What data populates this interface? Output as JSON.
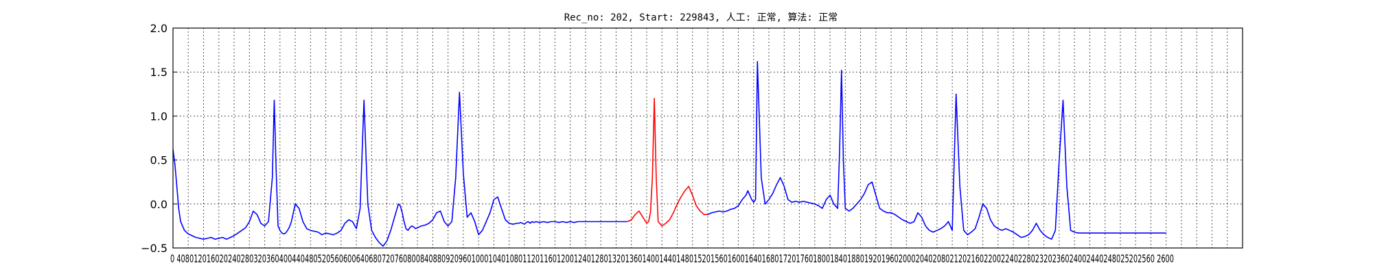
{
  "chart_data": {
    "type": "line",
    "title": "Rec_no: 202, Start: 229843, 人工: 正常, 算法: 正常",
    "xlabel": "",
    "ylabel": "",
    "xlim": [
      0,
      2800
    ],
    "ylim": [
      -0.5,
      2.0
    ],
    "grid": true,
    "legend": "none",
    "yticks": [
      -0.5,
      0.0,
      0.5,
      1.0,
      1.5,
      2.0
    ],
    "ytick_labels": [
      "−0.5",
      "0.0",
      "0.5",
      "1.0",
      "1.5",
      "2.0"
    ],
    "xtick_step": 40,
    "xtick_labels_visible": [
      "0",
      "4080",
      "120",
      "160",
      "202",
      "2402",
      "80",
      "3",
      "20",
      "3",
      "6",
      "0",
      "4",
      "00",
      "4",
      "40",
      "4",
      "8",
      "0",
      "5",
      "2",
      "0",
      "5",
      "6",
      "0",
      "6",
      "0",
      "0",
      "6",
      "4",
      "0",
      "6",
      "80",
      "7",
      "2",
      "0",
      "7",
      "6",
      "0",
      "8",
      "0",
      "0",
      "8",
      "4",
      "0",
      "8",
      "8",
      "0",
      "9",
      "2",
      "0",
      "9",
      "6",
      "0",
      "0",
      "1",
      "0",
      "0",
      "0",
      "1",
      "0",
      "4",
      "0",
      "1",
      "0",
      "8",
      "0",
      "1",
      "1",
      "2",
      "0",
      "1",
      "1",
      "6",
      "0",
      "1",
      "2",
      "0",
      "0",
      "1",
      "2",
      "4",
      "0",
      "1",
      "2",
      "8",
      "0",
      "1",
      "3",
      "2",
      "0",
      "1",
      "3",
      "6",
      "0",
      "1",
      "4",
      "0",
      "0",
      "1",
      "4",
      "4",
      "0",
      "1",
      "4",
      "8",
      "0",
      "1",
      "5",
      "2",
      "0",
      "1",
      "5",
      "6",
      "0",
      "1",
      "6",
      "0",
      "0",
      "1",
      "6",
      "4",
      "0",
      "1",
      "6",
      "8",
      "0",
      "1",
      "7",
      "2",
      "0",
      "1",
      "7",
      "6",
      "0",
      "1",
      "8",
      "0",
      "0",
      "1",
      "8",
      "4",
      "0",
      "1",
      "8",
      "8",
      "0",
      "1",
      "9",
      "2",
      "0",
      "1",
      "9",
      "6",
      "0",
      "2",
      "0",
      "0",
      "0",
      "2",
      "0",
      "4",
      "0",
      "2",
      "0",
      "8",
      "0",
      "2",
      "1",
      "2",
      "0",
      "2",
      "1",
      "6",
      "0",
      "2",
      "2",
      "0",
      "0",
      "2",
      "2",
      "4",
      "0",
      "2",
      "2",
      "8",
      "0",
      "2",
      "3",
      "2",
      "0",
      "2",
      "3",
      "6",
      "0",
      "2",
      "4",
      "0",
      "0",
      "2",
      "4",
      "4",
      "0",
      "2",
      "4",
      "8",
      "0",
      "2",
      "5",
      "2",
      "0",
      "2",
      "5",
      "6",
      "0",
      "2",
      "6",
      "0",
      "0"
    ],
    "xtick_text": "0 4080120160202402803203604004404805205606006406807207608008408809209601000104010801120116012001240128013201360140014401480152015601600164016801720176018001840188019201960200020402080212021602200224022802320236024002440248025202560 2600",
    "series": [
      {
        "color": "#0000ff",
        "segment": "pre",
        "x": [
          0,
          5,
          10,
          15,
          20,
          30,
          40,
          50,
          60,
          70,
          80,
          90,
          100,
          110,
          120,
          130,
          140,
          150,
          160,
          170,
          180,
          190,
          200,
          210,
          220,
          230,
          240,
          250,
          260,
          265,
          270,
          275,
          280,
          285,
          290,
          295,
          300,
          305,
          310,
          315,
          320,
          330,
          340,
          350,
          360,
          370,
          380,
          390,
          400,
          410,
          420,
          430,
          440,
          450,
          460,
          470,
          480,
          490,
          500,
          510,
          520,
          530,
          540,
          550,
          560,
          570,
          580,
          590,
          595,
          600,
          605,
          610,
          615,
          620,
          625,
          630,
          635,
          640,
          645,
          650,
          660,
          670,
          680,
          690,
          700,
          710,
          720,
          730,
          740,
          750,
          760,
          770,
          780,
          790,
          800,
          810,
          820,
          830,
          840,
          850,
          860,
          870,
          880,
          890,
          900,
          905,
          910,
          915,
          920,
          925,
          930,
          935,
          940,
          945,
          950,
          960,
          970,
          980,
          990,
          1000,
          1010,
          1020,
          1030,
          1040,
          1050,
          1060,
          1070,
          1080,
          1090,
          1100,
          1110,
          1120,
          1130,
          1140,
          1150,
          1160,
          1170,
          1180,
          1190
        ],
        "y": [
          0.62,
          0.45,
          0.2,
          -0.05,
          -0.2,
          -0.3,
          -0.34,
          -0.36,
          -0.38,
          -0.39,
          -0.4,
          -0.39,
          -0.38,
          -0.4,
          -0.39,
          -0.38,
          -0.4,
          -0.38,
          -0.36,
          -0.33,
          -0.3,
          -0.27,
          -0.2,
          -0.08,
          -0.12,
          -0.22,
          -0.25,
          -0.2,
          0.3,
          1.18,
          0.4,
          -0.25,
          -0.3,
          -0.33,
          -0.34,
          -0.33,
          -0.3,
          -0.26,
          -0.2,
          -0.1,
          0.0,
          -0.05,
          -0.2,
          -0.28,
          -0.3,
          -0.31,
          -0.32,
          -0.35,
          -0.33,
          -0.34,
          -0.35,
          -0.33,
          -0.3,
          -0.22,
          -0.18,
          -0.2,
          -0.28,
          -0.05,
          1.18,
          0.0,
          -0.3,
          -0.38,
          -0.44,
          -0.48,
          -0.42,
          -0.3,
          -0.15,
          0.0,
          -0.02,
          -0.1,
          -0.2,
          -0.28,
          -0.3,
          -0.27,
          -0.25,
          -0.26,
          -0.28,
          -0.27,
          -0.26,
          -0.25,
          -0.24,
          -0.22,
          -0.18,
          -0.1,
          -0.08,
          -0.2,
          -0.25,
          -0.2,
          0.3,
          1.27,
          0.35,
          -0.15,
          -0.1,
          -0.2,
          -0.35,
          -0.3,
          -0.2,
          -0.1,
          0.05,
          0.08,
          -0.05,
          -0.18,
          -0.22,
          -0.23,
          -0.22,
          -0.22,
          -0.21,
          -0.22,
          -0.23,
          -0.21,
          -0.2,
          -0.22,
          -0.2,
          -0.21,
          -0.2,
          -0.21,
          -0.2,
          -0.21,
          -0.2,
          -0.2,
          -0.21,
          -0.2,
          -0.21,
          -0.2,
          -0.21,
          -0.2,
          -0.2,
          -0.2,
          -0.2,
          -0.2,
          -0.2,
          -0.2,
          -0.2,
          -0.2,
          -0.2,
          -0.2,
          -0.2,
          -0.2,
          -0.2
        ]
      },
      {
        "color": "#ff0000",
        "segment": "highlight",
        "x": [
          1190,
          1200,
          1210,
          1220,
          1230,
          1240,
          1245,
          1250,
          1255,
          1260,
          1265,
          1270,
          1280,
          1290,
          1300,
          1310,
          1320,
          1330,
          1340,
          1350,
          1360,
          1370,
          1380,
          1390,
          1400
        ],
        "y": [
          -0.2,
          -0.18,
          -0.12,
          -0.08,
          -0.15,
          -0.22,
          -0.2,
          -0.1,
          0.3,
          1.2,
          0.3,
          -0.2,
          -0.25,
          -0.22,
          -0.18,
          -0.1,
          0.0,
          0.08,
          0.15,
          0.2,
          0.1,
          -0.02,
          -0.08,
          -0.12,
          -0.12
        ]
      },
      {
        "color": "#0000ff",
        "segment": "post",
        "x": [
          1400,
          1410,
          1420,
          1430,
          1440,
          1450,
          1460,
          1470,
          1480,
          1490,
          1500,
          1505,
          1510,
          1515,
          1520,
          1525,
          1530,
          1540,
          1550,
          1560,
          1570,
          1580,
          1590,
          1600,
          1610,
          1620,
          1630,
          1640,
          1650,
          1660,
          1670,
          1680,
          1690,
          1700,
          1710,
          1720,
          1730,
          1740,
          1745,
          1750,
          1755,
          1760,
          1770,
          1780,
          1790,
          1800,
          1810,
          1820,
          1830,
          1840,
          1850,
          1860,
          1870,
          1880,
          1890,
          1900,
          1910,
          1920,
          1930,
          1940,
          1950,
          1960,
          1970,
          1980,
          1990,
          2000,
          2010,
          2020,
          2030,
          2040,
          2050,
          2060,
          2070,
          2080,
          2090,
          2100,
          2110,
          2120,
          2130,
          2140,
          2150,
          2160,
          2170,
          2180,
          2190,
          2200,
          2210,
          2220,
          2230,
          2240,
          2250,
          2260,
          2270,
          2280,
          2290,
          2300,
          2310,
          2320,
          2330,
          2340,
          2350,
          2360,
          2370,
          2380,
          2390,
          2400,
          2410,
          2420,
          2430,
          2440,
          2450,
          2460,
          2470,
          2480,
          2490,
          2500,
          2510,
          2520,
          2530,
          2540,
          2550,
          2560,
          2570,
          2580,
          2590,
          2600
        ],
        "y": [
          -0.12,
          -0.1,
          -0.09,
          -0.08,
          -0.09,
          -0.08,
          -0.06,
          -0.05,
          -0.02,
          0.05,
          0.1,
          0.15,
          0.1,
          0.05,
          0.02,
          0.05,
          1.62,
          0.3,
          0.0,
          0.05,
          0.12,
          0.22,
          0.3,
          0.2,
          0.05,
          0.02,
          0.03,
          0.02,
          0.03,
          0.02,
          0.01,
          0.0,
          -0.02,
          -0.05,
          0.05,
          0.1,
          0.0,
          -0.05,
          0.6,
          1.52,
          0.5,
          -0.05,
          -0.08,
          -0.05,
          0.0,
          0.05,
          0.12,
          0.22,
          0.25,
          0.1,
          -0.05,
          -0.08,
          -0.1,
          -0.1,
          -0.12,
          -0.15,
          -0.18,
          -0.2,
          -0.22,
          -0.2,
          -0.1,
          -0.15,
          -0.25,
          -0.3,
          -0.32,
          -0.3,
          -0.28,
          -0.25,
          -0.2,
          -0.3,
          1.25,
          0.2,
          -0.3,
          -0.35,
          -0.32,
          -0.28,
          -0.15,
          0.0,
          -0.05,
          -0.18,
          -0.25,
          -0.28,
          -0.3,
          -0.28,
          -0.3,
          -0.32,
          -0.35,
          -0.38,
          -0.37,
          -0.35,
          -0.3,
          -0.22,
          -0.3,
          -0.35,
          -0.38,
          -0.4,
          -0.3,
          0.5,
          1.18,
          0.2,
          -0.3,
          -0.32,
          -0.33,
          -0.33,
          -0.33,
          -0.33,
          -0.33,
          -0.33,
          -0.33,
          -0.33,
          -0.33,
          -0.33,
          -0.33,
          -0.33,
          -0.33,
          -0.33,
          -0.33,
          -0.33,
          -0.33,
          -0.33,
          -0.33,
          -0.33,
          -0.33,
          -0.33,
          -0.33,
          -0.33
        ]
      }
    ]
  }
}
